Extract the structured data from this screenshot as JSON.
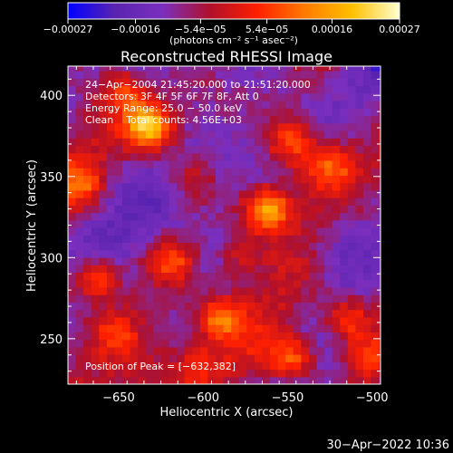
{
  "chart_data": {
    "type": "heatmap",
    "title": "Reconstructed RHESSI Image",
    "xlabel": "Heliocentric X (arcsec)",
    "ylabel": "Heliocentric Y (arcsec)",
    "xlim": [
      -680,
      -495
    ],
    "ylim": [
      222,
      418
    ],
    "x_ticks": [
      -650,
      -600,
      -550,
      -500
    ],
    "x_tick_labels": [
      "−650",
      "−600",
      "−550",
      "−500"
    ],
    "y_ticks": [
      250,
      300,
      350,
      400
    ],
    "y_tick_labels": [
      "250",
      "300",
      "350",
      "400"
    ],
    "colorbar": {
      "range": [
        -0.00027,
        0.00027
      ],
      "tick_values": [
        -0.00027,
        -0.00016,
        -5.4e-05,
        5.4e-05,
        0.00016,
        0.00027
      ],
      "tick_labels": [
        "−0.00027",
        "−0.00016",
        "−5.4e−05",
        "5.4e−05",
        "0.00016",
        "0.00027"
      ],
      "unit_label": "(photons cm⁻² s⁻¹ asec⁻²)",
      "colors": [
        "#0000ff",
        "#5a24b0",
        "#7b2fbe",
        "#b0102a",
        "#ff2000",
        "#ff7a00",
        "#ffc000",
        "#ffffd0"
      ]
    },
    "annotations": [
      "24−Apr−2004 21:45:20.000 to 21:51:20.000",
      "Detectors: 3F 4F 5F 6F 7F 8F, Att 0",
      "Energy Range: 25.0 − 50.0 keV",
      "Clean    Total counts: 4.56E+03",
      "Position of Peak = [−632,382]"
    ],
    "peak": [
      -632,
      382
    ],
    "hotspots": [
      {
        "x": -632,
        "y": 382,
        "value": 0.00027
      },
      {
        "x": -562,
        "y": 330,
        "value": 0.00026
      },
      {
        "x": -663,
        "y": 288,
        "value": 0.00022
      },
      {
        "x": -548,
        "y": 372,
        "value": 0.00015
      },
      {
        "x": -618,
        "y": 298,
        "value": 0.00014
      },
      {
        "x": -524,
        "y": 357,
        "value": 0.00013
      },
      {
        "x": -591,
        "y": 264,
        "value": 0.00017
      },
      {
        "x": -546,
        "y": 238,
        "value": 0.00018
      },
      {
        "x": -515,
        "y": 262,
        "value": 0.00015
      },
      {
        "x": -647,
        "y": 404,
        "value": 0.00014
      },
      {
        "x": -672,
        "y": 345,
        "value": 0.00012
      },
      {
        "x": -580,
        "y": 300,
        "value": 0.0001
      },
      {
        "x": -652,
        "y": 254,
        "value": 0.0001
      },
      {
        "x": -606,
        "y": 348,
        "value": 8e-05
      },
      {
        "x": -504,
        "y": 238,
        "value": 0.00012
      },
      {
        "x": -604,
        "y": 234,
        "value": 9e-05
      }
    ],
    "grid": false,
    "legend": "none"
  },
  "footer": {
    "timestamp": "30−Apr−2022 10:36"
  }
}
